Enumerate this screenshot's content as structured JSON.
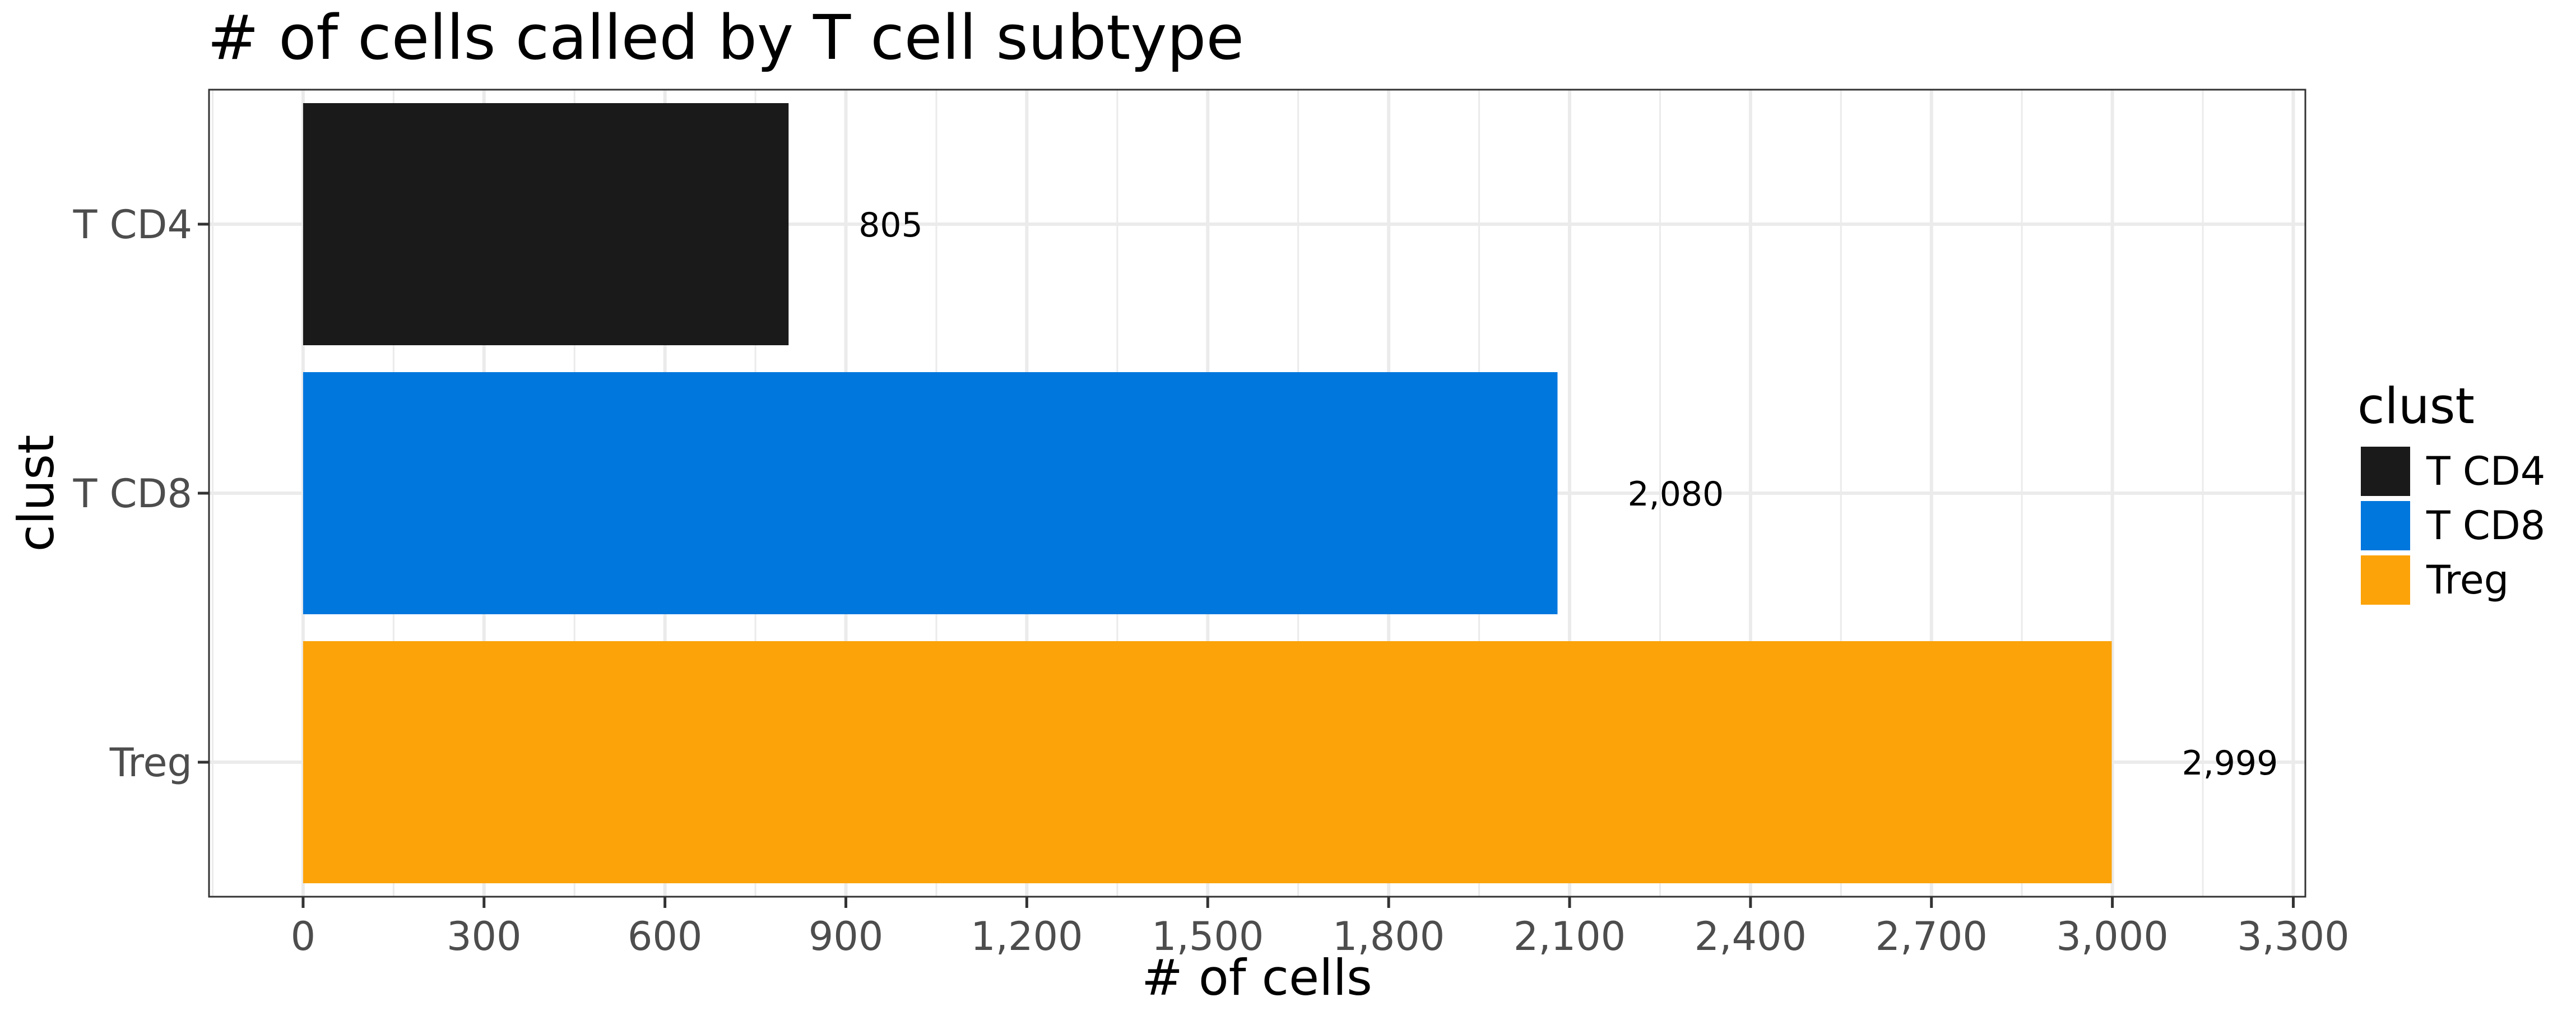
{
  "chart_data": {
    "type": "bar",
    "orientation": "horizontal",
    "title": "# of cells called by T cell subtype",
    "xlabel": "# of cells",
    "ylabel": "clust",
    "categories": [
      "T CD4",
      "T CD8",
      "Treg"
    ],
    "values": [
      805,
      2080,
      2999
    ],
    "value_labels": [
      "805",
      "2,080",
      "2,999"
    ],
    "colors": [
      "#1a1a1a",
      "#0077dd",
      "#fca30a"
    ],
    "xlim": [
      -156,
      3320
    ],
    "x_ticks": [
      0,
      300,
      600,
      900,
      1200,
      1500,
      1800,
      2100,
      2400,
      2700,
      3000,
      3300
    ],
    "x_tick_labels": [
      "0",
      "300",
      "600",
      "900",
      "1,200",
      "1,500",
      "1,800",
      "2,100",
      "2,400",
      "2,700",
      "3,000",
      "3,300"
    ],
    "grid": true,
    "legend": {
      "title": "clust",
      "position": "right",
      "entries": [
        "T CD4",
        "T CD8",
        "Treg"
      ]
    }
  }
}
